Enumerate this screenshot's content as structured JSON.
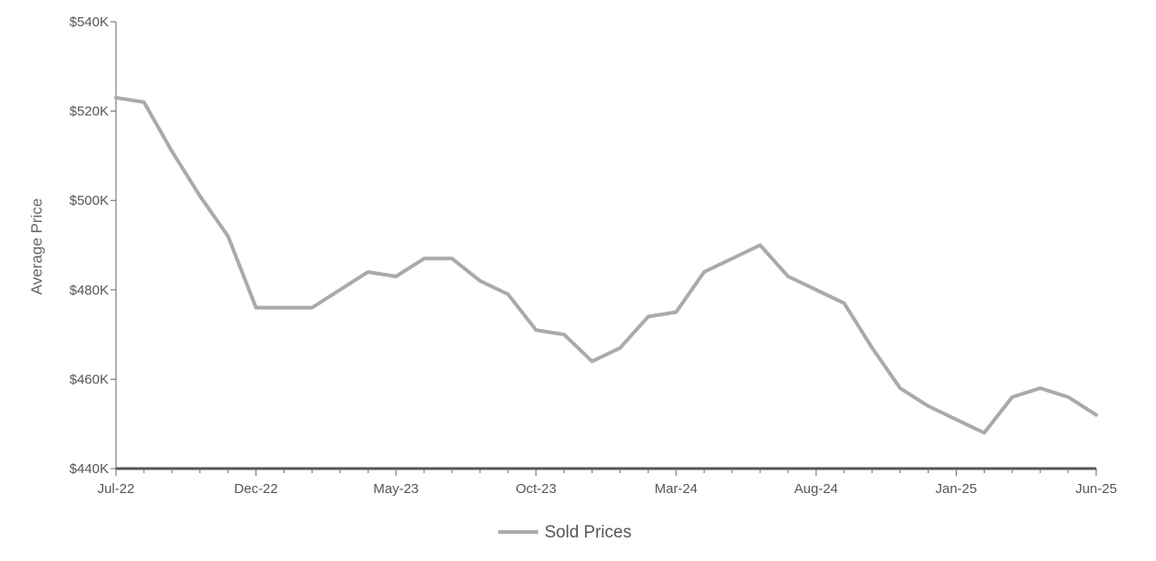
{
  "chart_data": {
    "type": "line",
    "ylabel": "Average Price",
    "xlabel": "",
    "title": "",
    "ylim": [
      440,
      540
    ],
    "y_ticks": [
      440,
      460,
      480,
      500,
      520,
      540
    ],
    "y_tick_labels": [
      "$440K",
      "$460K",
      "$480K",
      "$500K",
      "$520K",
      "$540K"
    ],
    "x_tick_labels": [
      {
        "index": 0,
        "label": "Jul-22"
      },
      {
        "index": 5,
        "label": "Dec-22"
      },
      {
        "index": 10,
        "label": "May-23"
      },
      {
        "index": 15,
        "label": "Oct-23"
      },
      {
        "index": 20,
        "label": "Mar-24"
      },
      {
        "index": 25,
        "label": "Aug-24"
      },
      {
        "index": 30,
        "label": "Jan-25"
      },
      {
        "index": 35,
        "label": "Jun-25"
      }
    ],
    "x": [
      "Jul-22",
      "Aug-22",
      "Sep-22",
      "Oct-22",
      "Nov-22",
      "Dec-22",
      "Jan-23",
      "Feb-23",
      "Mar-23",
      "Apr-23",
      "May-23",
      "Jun-23",
      "Jul-23",
      "Aug-23",
      "Sep-23",
      "Oct-23",
      "Nov-23",
      "Dec-23",
      "Jan-24",
      "Feb-24",
      "Mar-24",
      "Apr-24",
      "May-24",
      "Jun-24",
      "Jul-24",
      "Aug-24",
      "Sep-24",
      "Oct-24",
      "Nov-24",
      "Dec-24",
      "Jan-25",
      "Feb-25",
      "Mar-25",
      "Apr-25",
      "May-25",
      "Jun-25"
    ],
    "series": [
      {
        "name": "Sold Prices",
        "color": "#aaaaaa",
        "values": [
          523,
          522,
          511,
          501,
          492,
          476,
          476,
          476,
          480,
          484,
          483,
          487,
          487,
          482,
          479,
          471,
          470,
          464,
          467,
          474,
          475,
          484,
          487,
          490,
          483,
          480,
          477,
          467,
          458,
          454,
          451,
          448,
          456,
          458,
          456,
          452
        ]
      }
    ],
    "legend_position": "bottom-center",
    "grid": false
  }
}
